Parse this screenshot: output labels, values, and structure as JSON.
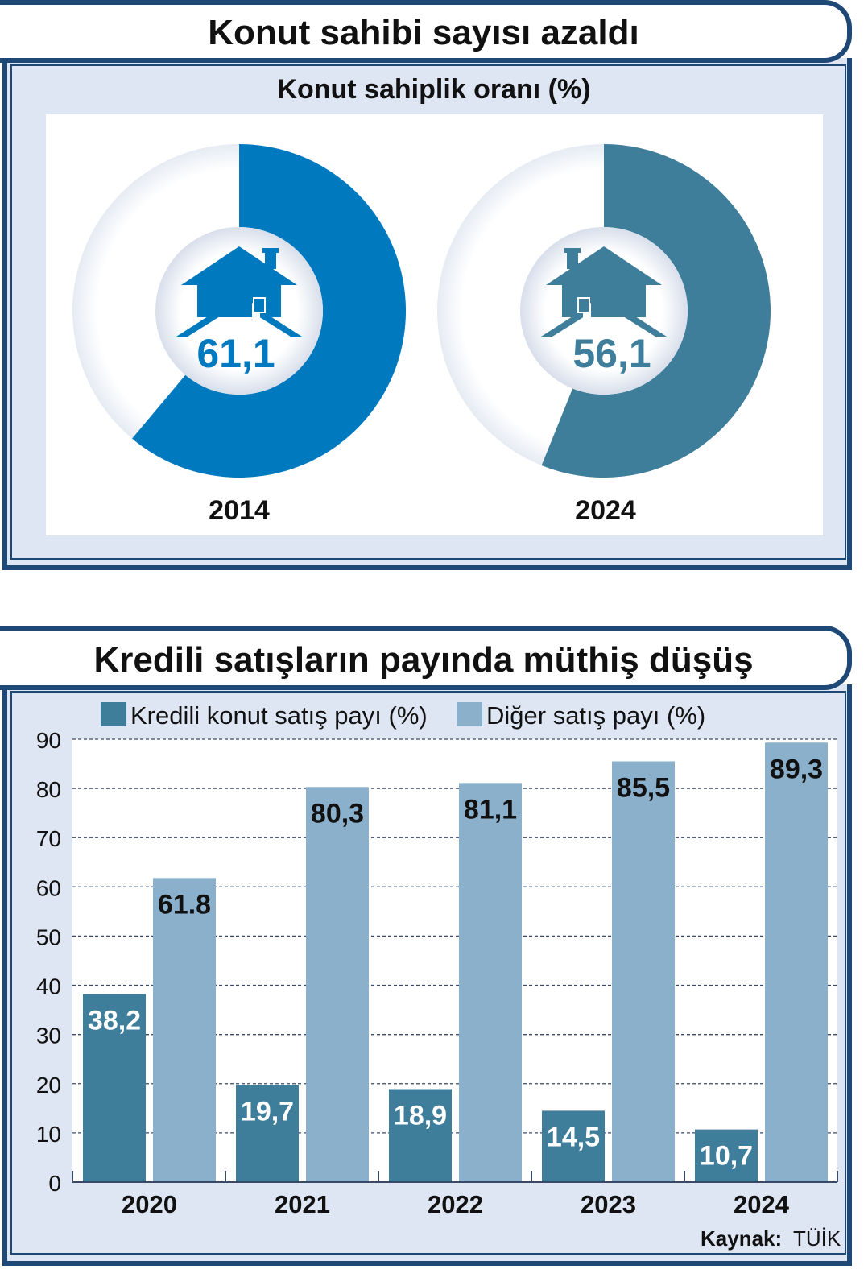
{
  "top": {
    "title": "Konut sahibi sayısı azaldı",
    "subtitle": "Konut sahiplik oranı (%)",
    "colors": {
      "ring2014": "#0079bf",
      "ring2024": "#3f7e9b",
      "frame": "#1e4976",
      "panel": "#dfe6f3"
    },
    "icon": "house-icon",
    "chart_data": {
      "type": "pie",
      "items": [
        {
          "year": "2014",
          "value": 61.1,
          "label": "61,1"
        },
        {
          "year": "2024",
          "value": 56.1,
          "label": "56,1"
        }
      ]
    }
  },
  "bottom": {
    "title": "Kredili satışların payında müthiş düşüş",
    "source_label": "Kaynak:",
    "source_value": "TÜİK",
    "colors": {
      "kredili": "#3f7e9b",
      "diger": "#8ab0cc"
    },
    "chart_data": {
      "type": "bar",
      "categories": [
        "2020",
        "2021",
        "2022",
        "2023",
        "2024"
      ],
      "series": [
        {
          "name": "Kredili konut satış payı (%)",
          "values": [
            38.2,
            19.7,
            18.9,
            14.5,
            10.7
          ],
          "labels": [
            "38,2",
            "19,7",
            "18,9",
            "14,5",
            "10,7"
          ]
        },
        {
          "name": "Diğer satış payı (%)",
          "values": [
            61.8,
            80.3,
            81.1,
            85.5,
            89.3
          ],
          "labels": [
            "61.8",
            "80,3",
            "81,1",
            "85,5",
            "89,3"
          ]
        }
      ],
      "ylim": [
        0,
        90
      ],
      "yticks": [
        0,
        10,
        20,
        30,
        40,
        50,
        60,
        70,
        80,
        90
      ],
      "grid": true,
      "legend": "top"
    }
  }
}
